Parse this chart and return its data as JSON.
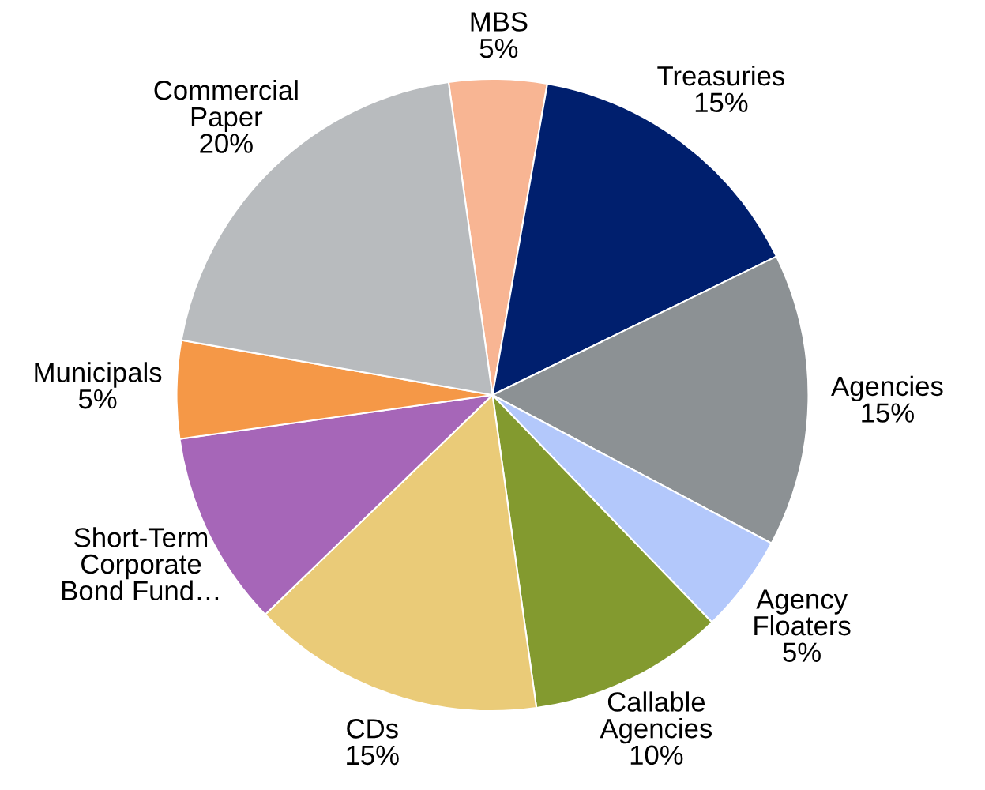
{
  "chart_data": {
    "type": "pie",
    "categories": [
      "MBS",
      "Treasuries",
      "Agencies",
      "Agency Floaters",
      "Callable Agencies",
      "CDs",
      "Short-Term Corporate Bond Fund…",
      "Municipals",
      "Commercial Paper"
    ],
    "values": [
      5,
      15,
      15,
      5,
      10,
      15,
      10,
      5,
      20
    ],
    "value_labels": [
      "5%",
      "15%",
      "15%",
      "5%",
      "10%",
      "15%",
      null,
      "5%",
      "20%"
    ],
    "colors": [
      "#f8b593",
      "#001f6e",
      "#8c9194",
      "#b3c8fb",
      "#839a2f",
      "#eacb78",
      "#a666b8",
      "#f59847",
      "#b8bbbe"
    ],
    "legend": false
  }
}
